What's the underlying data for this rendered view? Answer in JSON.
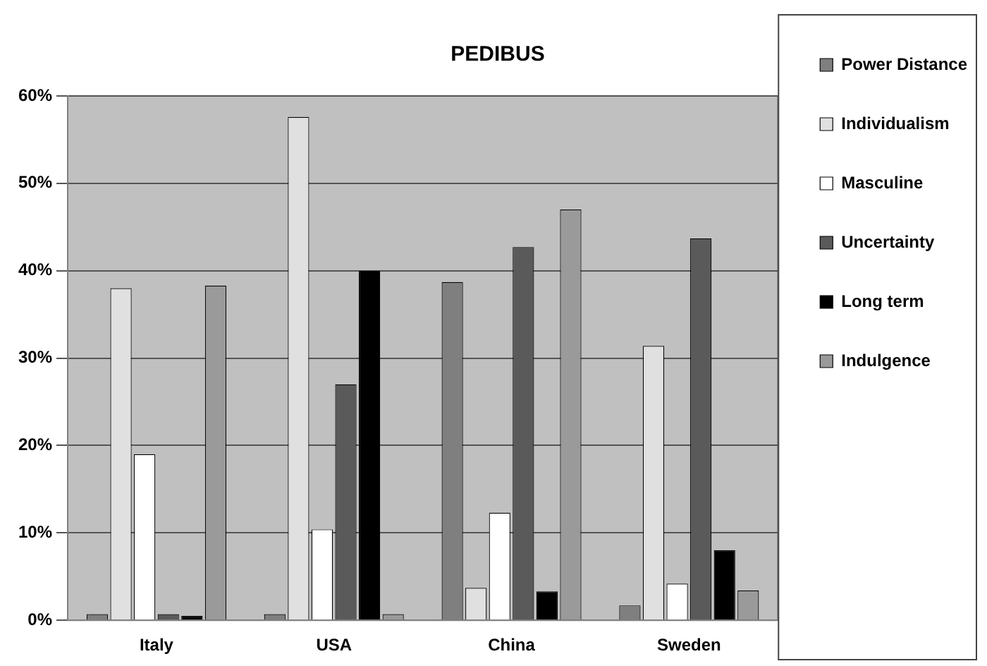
{
  "chart_data": {
    "type": "bar",
    "title": "PEDIBUS",
    "categories": [
      "Italy",
      "USA",
      "China",
      "Sweden"
    ],
    "series": [
      {
        "name": "Power Distance",
        "color": "#7f7f7f",
        "values": [
          0.7,
          0.7,
          38.7,
          1.7
        ]
      },
      {
        "name": "Individualism",
        "color": "#e0e0e0",
        "values": [
          38,
          57.6,
          3.7,
          31.4
        ]
      },
      {
        "name": "Masculine",
        "color": "#ffffff",
        "values": [
          19,
          10.4,
          12.3,
          4.2
        ]
      },
      {
        "name": "Uncertainty",
        "color": "#5a5a5a",
        "values": [
          0.7,
          27,
          42.7,
          43.7
        ]
      },
      {
        "name": "Long term",
        "color": "#000000",
        "values": [
          0.5,
          40,
          3.3,
          8
        ]
      },
      {
        "name": "Indulgence",
        "color": "#9a9a9a",
        "values": [
          38.3,
          0.7,
          47,
          3.4
        ]
      }
    ],
    "ylim": [
      0,
      60
    ],
    "yticks": [
      {
        "value": 0,
        "label": "0%"
      },
      {
        "value": 10,
        "label": "10%"
      },
      {
        "value": 20,
        "label": "20%"
      },
      {
        "value": 30,
        "label": "30%"
      },
      {
        "value": 40,
        "label": "40%"
      },
      {
        "value": 50,
        "label": "50%"
      },
      {
        "value": 60,
        "label": "60%"
      }
    ],
    "grid": "y",
    "legend": "right"
  }
}
